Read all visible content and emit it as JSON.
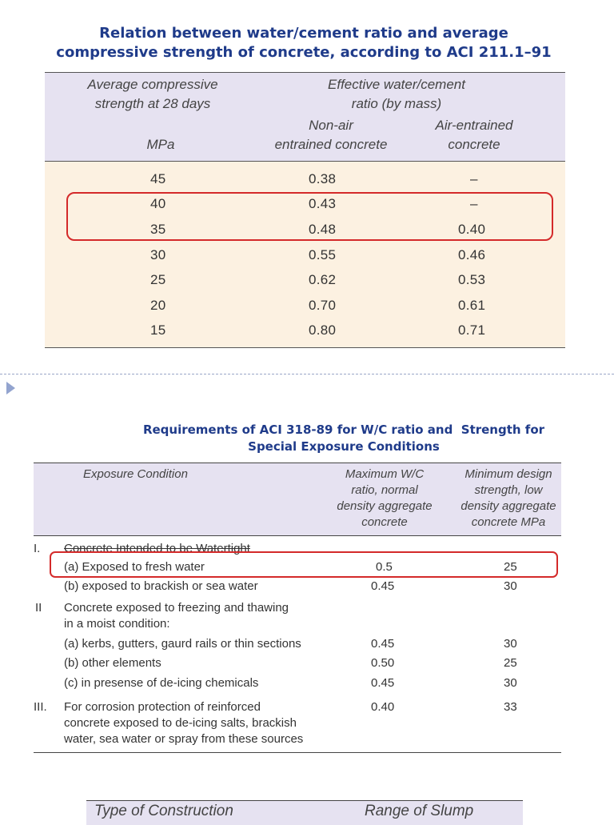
{
  "table1": {
    "title_line1": "Relation between water/cement ratio and average",
    "title_line2": "compressive strength of concrete, according to ACI 211.1–91",
    "header": {
      "col1_line1": "Average compressive",
      "col1_line2": "strength at 28 days",
      "col1_unit": "MPa",
      "group_line1": "Effective water/cement",
      "group_line2": "ratio (by mass)",
      "col2_line1": "Non-air",
      "col2_line2": "entrained concrete",
      "col3_line1": "Air-entrained",
      "col3_line2": "concrete"
    },
    "rows": [
      {
        "strength": "45",
        "non_air": "0.38",
        "air": "–"
      },
      {
        "strength": "40",
        "non_air": "0.43",
        "air": "–"
      },
      {
        "strength": "35",
        "non_air": "0.48",
        "air": "0.40"
      },
      {
        "strength": "30",
        "non_air": "0.55",
        "air": "0.46"
      },
      {
        "strength": "25",
        "non_air": "0.62",
        "air": "0.53"
      },
      {
        "strength": "20",
        "non_air": "0.70",
        "air": "0.61"
      },
      {
        "strength": "15",
        "non_air": "0.80",
        "air": "0.71"
      }
    ]
  },
  "table2": {
    "title_line1": "Requirements of ACI 318-89 for W/C ratio and  Strength for",
    "title_line2": "Special Exposure Conditions",
    "header": {
      "col1": "Exposure Condition",
      "col2_line1": "Maximum W/C",
      "col2_line2": "ratio, normal",
      "col2_line3": "density aggregate",
      "col2_line4": "concrete",
      "col3_line1": "Minimum design",
      "col3_line2": "strength, low",
      "col3_line3": "density aggregate",
      "col3_line4": "concrete MPa"
    },
    "groups": [
      {
        "numeral": "I.",
        "text_lines": [
          "Concrete Intended to be Watertight"
        ]
      },
      {
        "numeral": "II",
        "text_lines": [
          "Concrete exposed to freezing and thawing",
          "in a moist condition:"
        ]
      },
      {
        "numeral": "III.",
        "text_lines": [
          "For corrosion protection of reinforced",
          "concrete exposed to de-icing salts, brackish",
          "water, sea water or spray from these sources"
        ],
        "wc": "0.40",
        "strength": "33"
      }
    ],
    "rows": [
      {
        "label": "(a) Exposed to fresh water",
        "wc": "0.5",
        "strength": "25"
      },
      {
        "label": "(b) exposed to brackish or sea water",
        "wc": "0.45",
        "strength": "30"
      },
      {
        "label": "(a) kerbs, gutters, gaurd rails or thin sections",
        "wc": "0.45",
        "strength": "30"
      },
      {
        "label": "(b) other elements",
        "wc": "0.50",
        "strength": "25"
      },
      {
        "label": "(c) in presense of de-icing chemicals",
        "wc": "0.45",
        "strength": "30"
      }
    ]
  },
  "table3": {
    "col1": "Type of Construction",
    "col2": "Range of Slump"
  },
  "colors": {
    "title_blue": "#1f3b8a",
    "header_lavender": "#e6e2f1",
    "body_cream": "#fcf1e1",
    "highlight_red": "#d42a2a"
  }
}
